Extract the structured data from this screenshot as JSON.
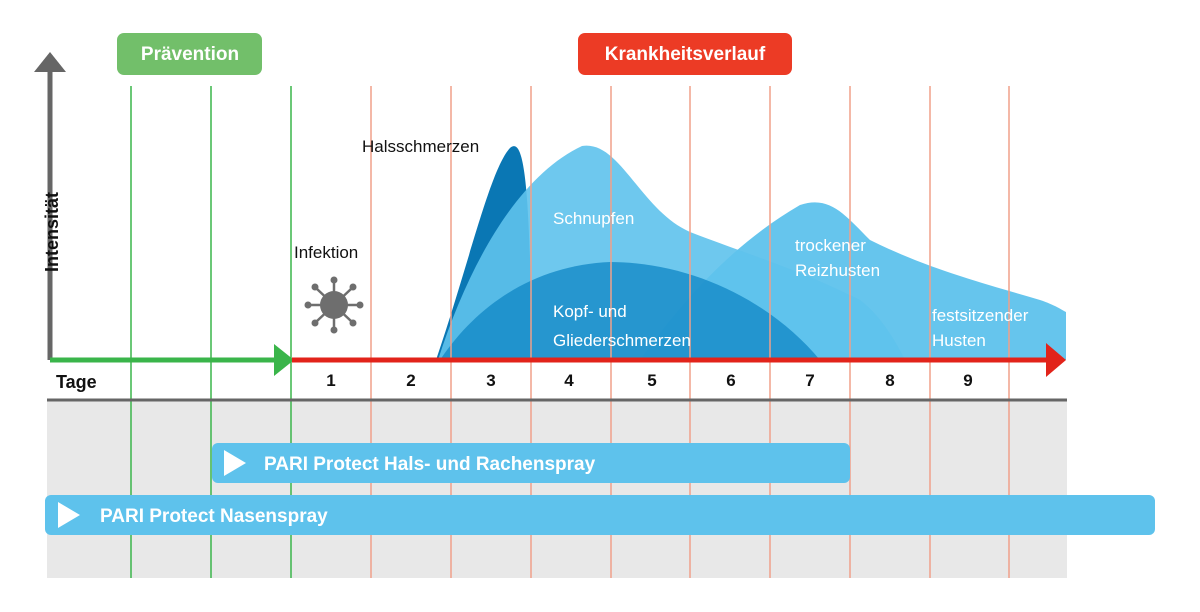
{
  "phases": {
    "prevention": {
      "label": "Prävention",
      "color": "#72bf6a"
    },
    "illness": {
      "label": "Krankheitsverlauf",
      "color": "#ec3b25"
    }
  },
  "axes": {
    "y_label": "Intensität",
    "x_label": "Tage",
    "days": [
      "1",
      "2",
      "3",
      "4",
      "5",
      "6",
      "7",
      "8",
      "9"
    ]
  },
  "events": {
    "infection": "Infektion",
    "sore_throat": "Halsschmerzen"
  },
  "symptoms": {
    "cold": "Schnupfen",
    "aches_line1": "Kopf- und",
    "aches_line2": "Gliederschmerzen",
    "dry_cough_line1": "trockener",
    "dry_cough_line2": "Reizhusten",
    "chesty_cough_line1": "festsitzender",
    "chesty_cough_line2": "Husten"
  },
  "products": {
    "throat_spray": "PARI Protect  Hals- und Rachenspray",
    "nasal_spray": "PARI Protect  Nasenspray"
  },
  "colors": {
    "prevention_green": "#3ab54a",
    "illness_red": "#e2231a",
    "day_line": "#f0a08a",
    "blue_light": "#5ec2ec",
    "blue_mid": "#2ba3d8",
    "blue_dark": "#0a77b4",
    "band_gray": "#e8e8e8",
    "axis_gray": "#666666",
    "virus": "#6e6e6e"
  }
}
